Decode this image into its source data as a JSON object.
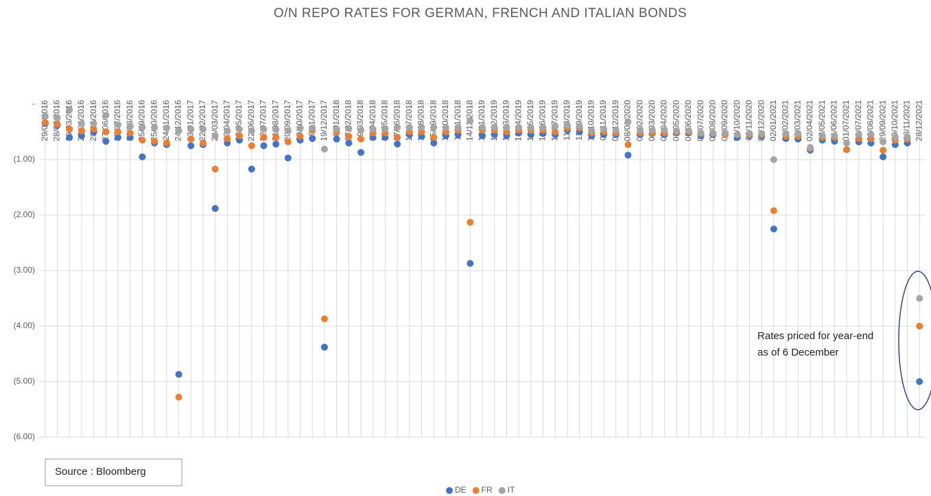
{
  "chart_data": {
    "type": "scatter",
    "title": "O/N REPO RATES FOR GERMAN, FRENCH AND ITALIAN BONDS",
    "categories": [
      "29/01/2016",
      "28/02/2016",
      "29/03/2016",
      "28/04/2016",
      "28/05/2016",
      "27/06/2016",
      "27/07/2016",
      "26/08/2016",
      "25/09/2016",
      "25/10/2016",
      "24/11/2016",
      "24/12/2016",
      "23/01/2017",
      "22/02/2017",
      "24/03/2017",
      "23/04/2017",
      "23/05/2017",
      "22/06/2017",
      "22/07/2017",
      "21/08/2017",
      "20/09/2017",
      "20/10/2017",
      "19/11/2017",
      "19/12/2017",
      "18/01/2018",
      "17/02/2018",
      "19/03/2018",
      "18/04/2018",
      "18/05/2018",
      "17/06/2018",
      "17/07/2018",
      "16/08/2018",
      "15/09/2018",
      "15/10/2018",
      "14/11/2018",
      "14/12/2018",
      "13/01/2019",
      "12/02/2019",
      "14/03/2019",
      "13/04/2019",
      "13/05/2019",
      "12/06/2019",
      "12/07/2019",
      "11/08/2019",
      "11/09/2019",
      "10/10/2019",
      "09/11/2019",
      "09/12/2019",
      "08/01/2020",
      "07/02/2020",
      "08/03/2020",
      "07/04/2020",
      "07/05/2020",
      "06/06/2020",
      "06/07/2020",
      "05/08/2020",
      "04/09/2020",
      "04/10/2020",
      "03/11/2020",
      "03/12/2020",
      "02/01/2021",
      "01/02/2021",
      "03/03/2021",
      "02/04/2021",
      "02/05/2021",
      "01/06/2021",
      "01/07/2021",
      "31/07/2021",
      "30/08/2021",
      "29/09/2021",
      "29/10/2021",
      "28/11/2021",
      "28/12/2021"
    ],
    "series": [
      {
        "name": "DE",
        "color": "#4472c4",
        "values": [
          -0.35,
          -0.38,
          -0.6,
          -0.57,
          -0.5,
          -0.67,
          -0.6,
          -0.6,
          -0.95,
          -0.7,
          -0.73,
          -4.87,
          -0.75,
          -0.73,
          -1.88,
          -0.7,
          -0.65,
          -1.17,
          -0.75,
          -0.72,
          -0.97,
          -0.65,
          -0.62,
          -4.38,
          -0.63,
          -0.7,
          -0.87,
          -0.6,
          -0.6,
          -0.72,
          -0.55,
          -0.58,
          -0.7,
          -0.57,
          -0.55,
          -2.87,
          -0.57,
          -0.55,
          -0.57,
          -0.52,
          -0.55,
          -0.53,
          -0.55,
          -0.47,
          -0.5,
          -0.57,
          -0.55,
          -0.55,
          -0.92,
          -0.55,
          -0.53,
          -0.55,
          -0.52,
          -0.52,
          -0.57,
          -0.55,
          -0.55,
          -0.6,
          -0.57,
          -0.58,
          -2.25,
          -0.62,
          -0.63,
          -0.83,
          -0.65,
          -0.67,
          -0.82,
          -0.68,
          -0.7,
          -0.95,
          -0.73,
          -0.7,
          -5.0
        ]
      },
      {
        "name": "FR",
        "color": "#ed7d31",
        "values": [
          -0.33,
          -0.36,
          -0.45,
          -0.48,
          -0.45,
          -0.5,
          -0.5,
          -0.52,
          -0.65,
          -0.67,
          -0.7,
          -5.28,
          -0.63,
          -0.7,
          -1.17,
          -0.62,
          -0.57,
          -0.75,
          -0.6,
          -0.6,
          -0.68,
          -0.58,
          -0.47,
          -3.87,
          -0.5,
          -0.58,
          -0.63,
          -0.52,
          -0.52,
          -0.6,
          -0.5,
          -0.5,
          -0.6,
          -0.5,
          -0.47,
          -2.13,
          -0.47,
          -0.47,
          -0.5,
          -0.47,
          -0.47,
          -0.47,
          -0.5,
          -0.43,
          -0.43,
          -0.52,
          -0.5,
          -0.52,
          -0.73,
          -0.52,
          -0.52,
          -0.52,
          -0.5,
          -0.5,
          -0.53,
          -0.53,
          -0.55,
          -0.55,
          -0.55,
          -0.55,
          -1.92,
          -0.58,
          -0.58,
          -0.8,
          -0.6,
          -0.6,
          -0.82,
          -0.62,
          -0.62,
          -0.83,
          -0.65,
          -0.63,
          -4.0
        ]
      },
      {
        "name": "IT",
        "color": "#a5a5a5",
        "values": [
          -0.22,
          -0.25,
          -0.1,
          -0.35,
          -0.35,
          -0.2,
          -0.37,
          -0.4,
          -0.42,
          -0.42,
          -0.43,
          -0.48,
          -0.45,
          -0.45,
          -0.57,
          -0.48,
          -0.45,
          -0.48,
          -0.45,
          -0.46,
          -0.48,
          -0.43,
          -0.43,
          -0.81,
          -0.45,
          -0.44,
          -0.47,
          -0.45,
          -0.44,
          -0.42,
          -0.42,
          -0.42,
          -0.42,
          -0.42,
          -0.42,
          -0.3,
          -0.42,
          -0.42,
          -0.42,
          -0.42,
          -0.42,
          -0.42,
          -0.4,
          -0.38,
          -0.4,
          -0.48,
          -0.45,
          -0.47,
          -0.32,
          -0.47,
          -0.47,
          -0.47,
          -0.48,
          -0.48,
          -0.52,
          -0.52,
          -0.52,
          -0.55,
          -0.53,
          -0.53,
          -1.0,
          -0.53,
          -0.53,
          -0.78,
          -0.57,
          -0.57,
          -0.7,
          -0.55,
          -0.55,
          -0.68,
          -0.6,
          -0.6,
          -3.5
        ]
      }
    ],
    "ylim": [
      -6,
      0
    ],
    "yticks": [
      {
        "value": -6,
        "label": "(6.00)"
      },
      {
        "value": -5,
        "label": "(5.00)"
      },
      {
        "value": -4,
        "label": "(4.00)"
      },
      {
        "value": -3,
        "label": "(3.00)"
      },
      {
        "value": -2,
        "label": "(2.00)"
      },
      {
        "value": -1,
        "label": "(1.00)"
      },
      {
        "value": 0,
        "label": "-"
      }
    ],
    "grid": true,
    "legend": "bottom",
    "annotation": [
      "Rates priced for year-end",
      "as of 6 December"
    ],
    "source": "Source : Bloomberg"
  }
}
